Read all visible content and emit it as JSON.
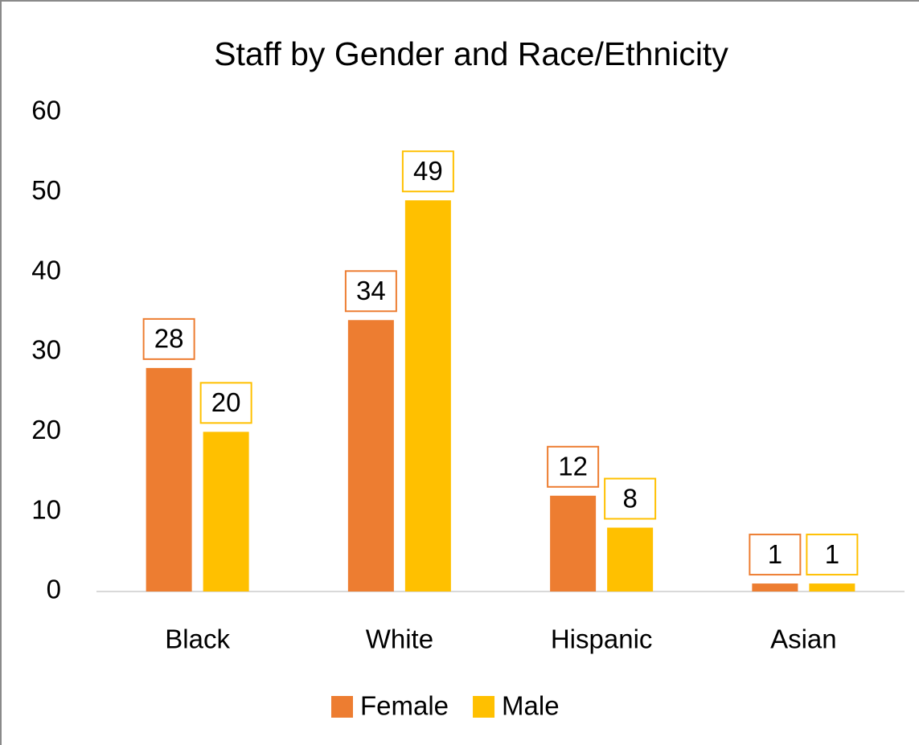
{
  "chart_data": {
    "type": "bar",
    "title": "Staff by Gender and Race/Ethnicity",
    "categories": [
      "Black",
      "White",
      "Hispanic",
      "Asian"
    ],
    "series": [
      {
        "name": "Female",
        "color": "#ed7d31",
        "values": [
          28,
          34,
          12,
          1
        ]
      },
      {
        "name": "Male",
        "color": "#ffc000",
        "values": [
          20,
          49,
          8,
          1
        ]
      }
    ],
    "ylim": [
      0,
      60
    ],
    "yticks": [
      0,
      10,
      20,
      30,
      40,
      50,
      60
    ],
    "grid": false,
    "legend": "bottom"
  }
}
